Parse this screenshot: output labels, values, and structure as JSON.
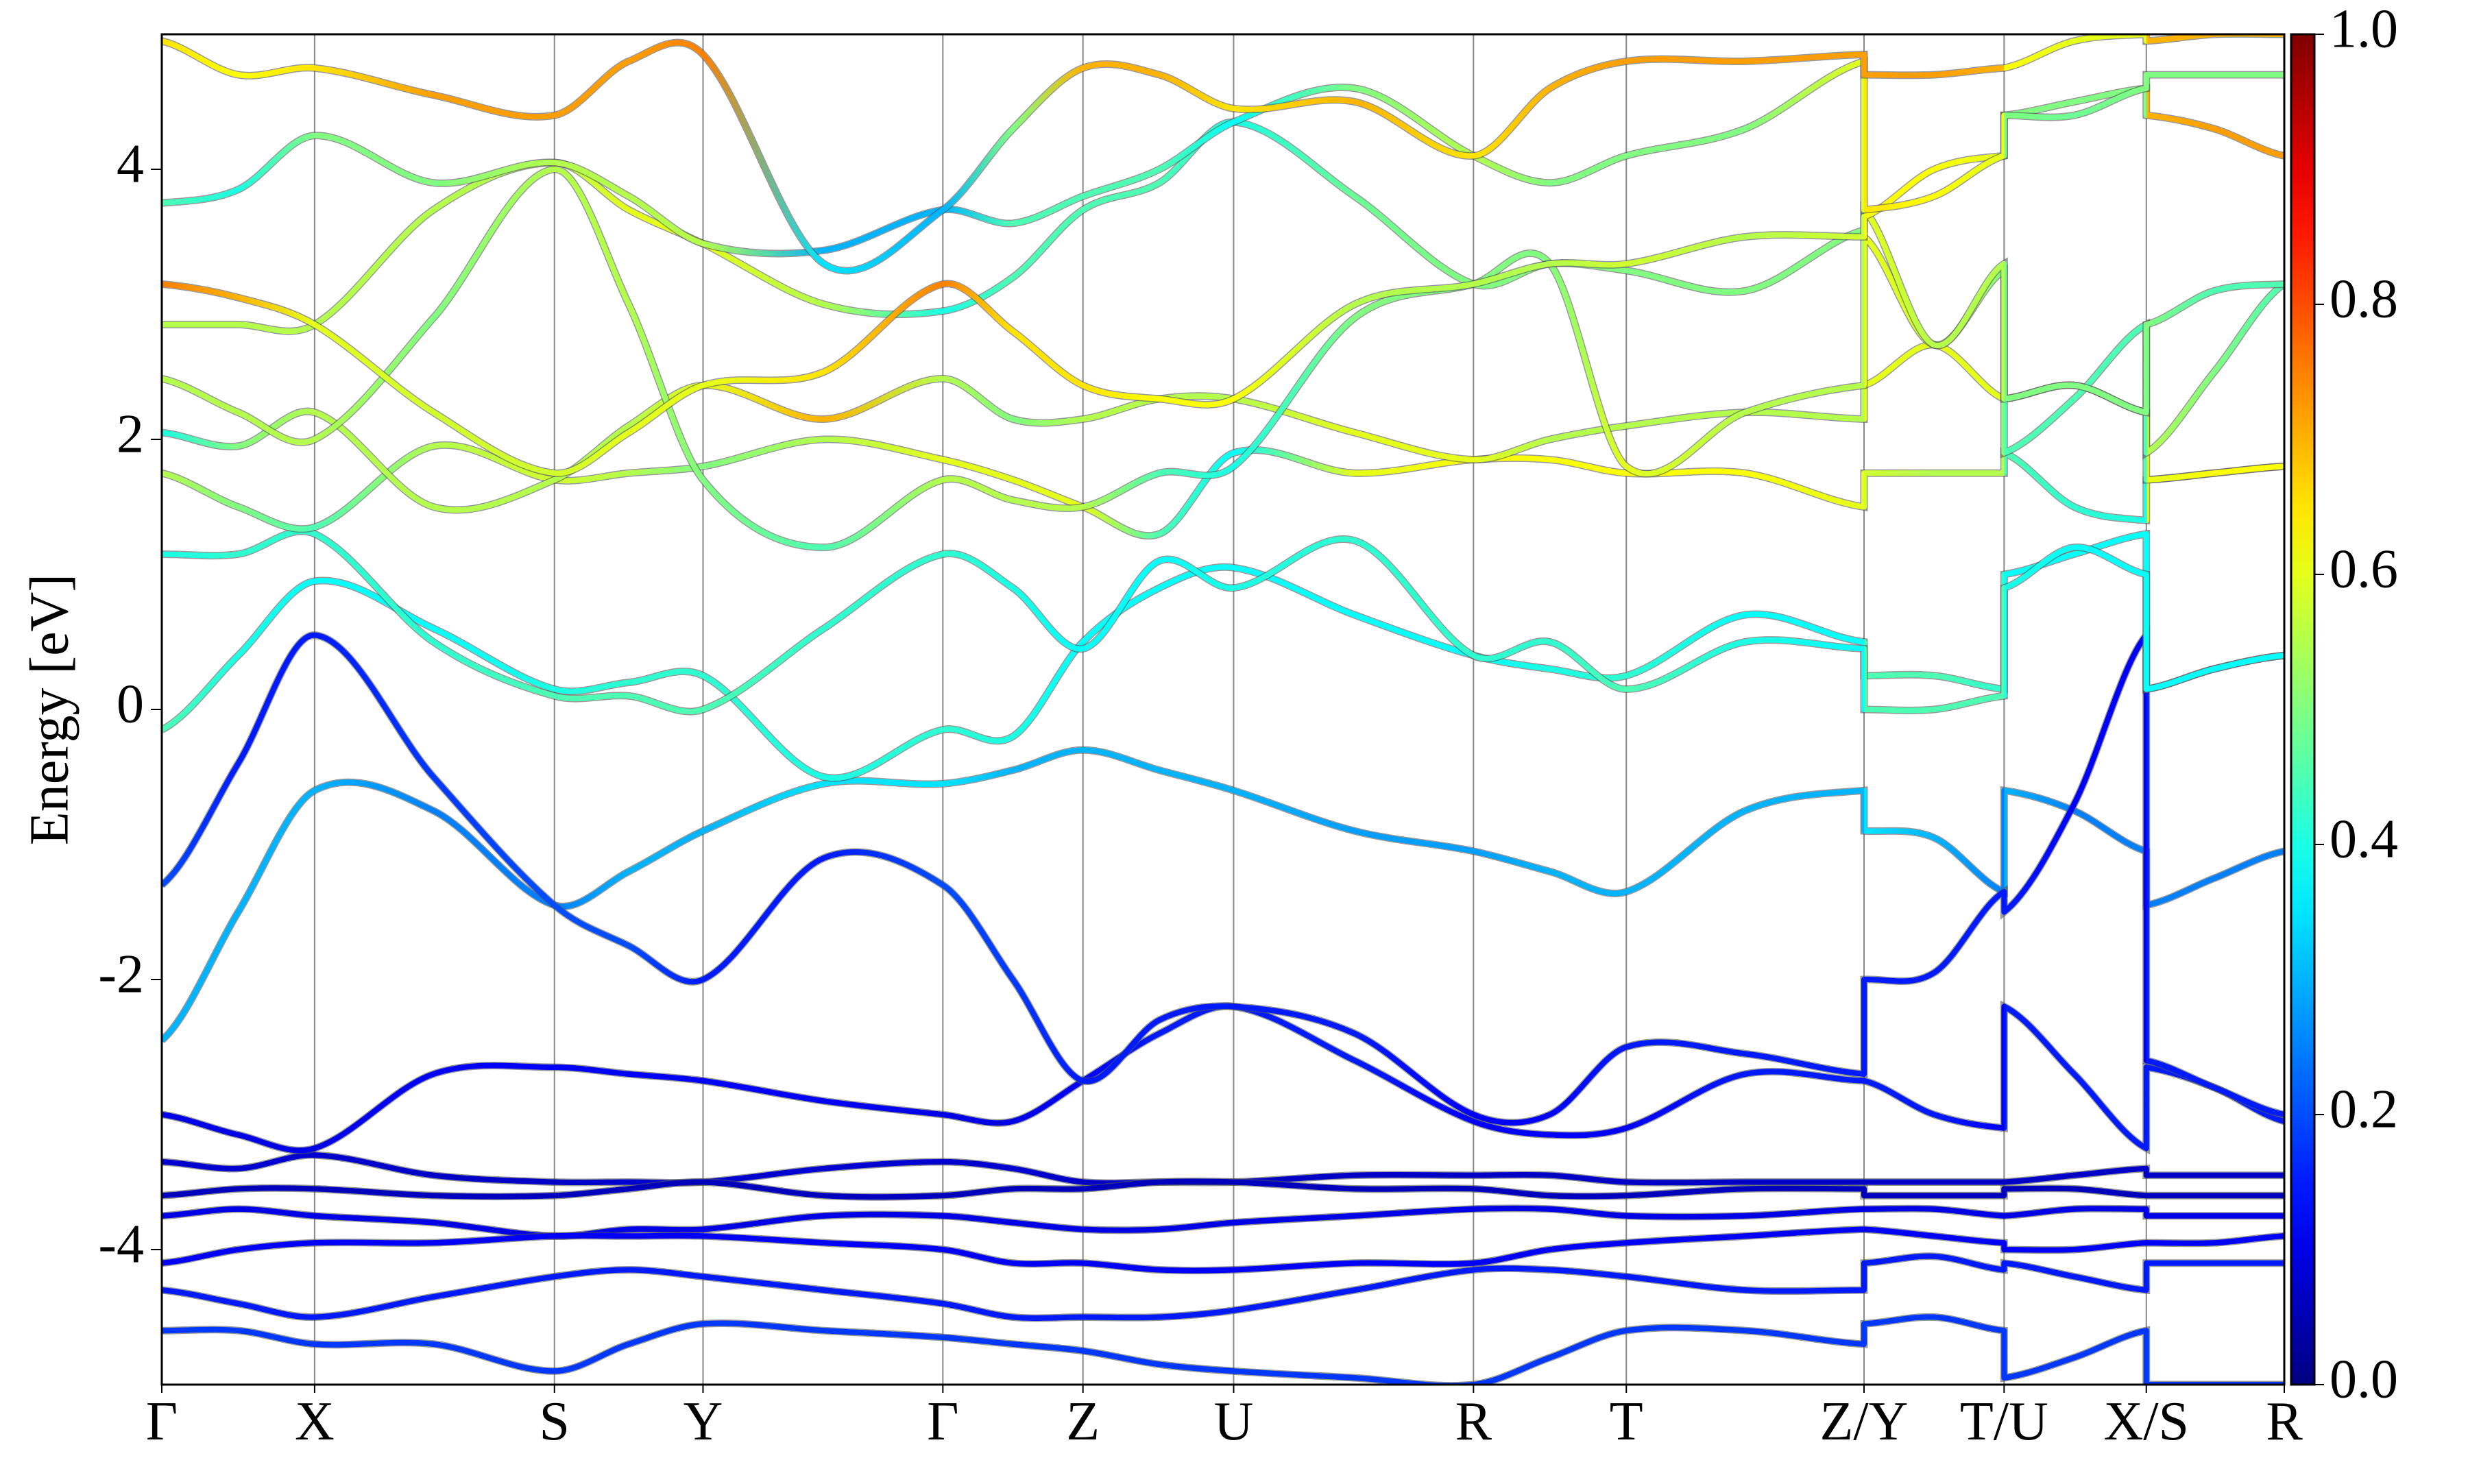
{
  "chart_data": {
    "type": "band",
    "ylabel": "Energy [eV]",
    "ylim": [
      -5,
      5
    ],
    "yticks": [
      -4,
      -2,
      0,
      2,
      4
    ],
    "xlim": [
      0,
      1
    ],
    "xticks": [
      {
        "value": 0,
        "label": "Γ"
      },
      {
        "value": 0.072,
        "label": "X"
      },
      {
        "value": 0.185,
        "label": "S"
      },
      {
        "value": 0.255,
        "label": "Y"
      },
      {
        "value": 0.368,
        "label": "Γ"
      },
      {
        "value": 0.434,
        "label": "Z"
      },
      {
        "value": 0.505,
        "label": "U"
      },
      {
        "value": 0.618,
        "label": "R"
      },
      {
        "value": 0.69,
        "label": "T"
      },
      {
        "value": 0.802,
        "label": "Z/Y"
      },
      {
        "value": 0.868,
        "label": "T/U"
      },
      {
        "value": 0.935,
        "label": "X/S"
      },
      {
        "value": 1,
        "label": "R"
      }
    ],
    "grid": true,
    "colormap": "jet",
    "clim": [
      0,
      1
    ],
    "cticks": [
      {
        "value": 0,
        "label": "0.0"
      },
      0.2,
      0.4,
      0.6,
      0.8,
      {
        "value": 1,
        "label": "1.0"
      }
    ],
    "x": [
      0,
      0.036,
      0.072,
      0.128,
      0.185,
      0.22,
      0.255,
      0.312,
      0.368,
      0.401,
      0.434,
      0.47,
      0.505,
      0.562,
      0.618,
      0.654,
      0.69,
      0.746,
      0.802,
      0.802,
      0.835,
      0.868,
      0.868,
      0.901,
      0.935,
      0.935,
      0.967,
      1
    ],
    "series": [
      {
        "values": [
          -3.35,
          -3.4,
          -3.3,
          -3.45,
          -3.5,
          -3.5,
          -3.5,
          -3.4,
          -3.35,
          -3.4,
          -3.5,
          -3.5,
          -3.5,
          -3.45,
          -3.45,
          -3.45,
          -3.5,
          -3.5,
          -3.5,
          -3.5,
          -3.5,
          -3.5,
          -3.5,
          -3.45,
          -3.4,
          -3.45,
          -3.45,
          -3.45
        ],
        "weights": [
          0.08,
          0.08,
          0.08,
          0.07,
          0.07,
          0.08,
          0.08,
          0.08,
          0.08,
          0.08,
          0.07,
          0.07,
          0.07,
          0.07,
          0.07,
          0.07,
          0.07,
          0.07,
          0.07,
          0.07,
          0.07,
          0.07,
          0.07,
          0.07,
          0.07,
          0.07,
          0.07,
          0.07
        ]
      },
      {
        "values": [
          -3.6,
          -3.55,
          -3.55,
          -3.6,
          -3.6,
          -3.55,
          -3.5,
          -3.6,
          -3.6,
          -3.55,
          -3.55,
          -3.5,
          -3.5,
          -3.55,
          -3.55,
          -3.6,
          -3.6,
          -3.55,
          -3.55,
          -3.6,
          -3.6,
          -3.6,
          -3.55,
          -3.55,
          -3.6,
          -3.6,
          -3.6,
          -3.6
        ],
        "weights": [
          0.06,
          0.06,
          0.06,
          0.06,
          0.06,
          0.06,
          0.06,
          0.06,
          0.06,
          0.06,
          0.06,
          0.06,
          0.06,
          0.06,
          0.06,
          0.06,
          0.06,
          0.06,
          0.06,
          0.06,
          0.06,
          0.06,
          0.06,
          0.06,
          0.06,
          0.06,
          0.06,
          0.06
        ]
      },
      {
        "values": [
          -3.75,
          -3.7,
          -3.75,
          -3.8,
          -3.9,
          -3.85,
          -3.85,
          -3.75,
          -3.75,
          -3.8,
          -3.85,
          -3.85,
          -3.8,
          -3.75,
          -3.7,
          -3.7,
          -3.75,
          -3.75,
          -3.7,
          -3.7,
          -3.7,
          -3.75,
          -3.75,
          -3.7,
          -3.7,
          -3.75,
          -3.75,
          -3.75
        ],
        "weights": [
          0.1,
          0.1,
          0.1,
          0.1,
          0.1,
          0.1,
          0.1,
          0.1,
          0.1,
          0.1,
          0.1,
          0.1,
          0.1,
          0.1,
          0.1,
          0.1,
          0.1,
          0.1,
          0.1,
          0.1,
          0.1,
          0.1,
          0.1,
          0.1,
          0.1,
          0.1,
          0.1,
          0.1
        ]
      },
      {
        "values": [
          -4.1,
          -4.0,
          -3.95,
          -3.95,
          -3.9,
          -3.9,
          -3.9,
          -3.95,
          -4.0,
          -4.1,
          -4.1,
          -4.15,
          -4.15,
          -4.1,
          -4.1,
          -4.0,
          -3.95,
          -3.9,
          -3.85,
          -3.85,
          -3.9,
          -3.95,
          -4.0,
          -4.0,
          -3.95,
          -3.95,
          -3.95,
          -3.9
        ],
        "weights": [
          0.12,
          0.12,
          0.12,
          0.12,
          0.12,
          0.12,
          0.12,
          0.12,
          0.12,
          0.12,
          0.12,
          0.12,
          0.12,
          0.12,
          0.12,
          0.12,
          0.12,
          0.12,
          0.12,
          0.12,
          0.12,
          0.12,
          0.12,
          0.12,
          0.12,
          0.12,
          0.12,
          0.12
        ]
      },
      {
        "values": [
          -4.3,
          -4.4,
          -4.5,
          -4.35,
          -4.2,
          -4.15,
          -4.2,
          -4.3,
          -4.4,
          -4.5,
          -4.5,
          -4.5,
          -4.45,
          -4.3,
          -4.15,
          -4.15,
          -4.2,
          -4.3,
          -4.3,
          -4.1,
          -4.05,
          -4.15,
          -4.1,
          -4.2,
          -4.3,
          -4.1,
          -4.1,
          -4.1
        ],
        "weights": [
          0.15,
          0.15,
          0.15,
          0.15,
          0.15,
          0.15,
          0.15,
          0.15,
          0.15,
          0.15,
          0.15,
          0.15,
          0.15,
          0.15,
          0.15,
          0.15,
          0.15,
          0.15,
          0.15,
          0.15,
          0.15,
          0.15,
          0.15,
          0.15,
          0.15,
          0.15,
          0.15,
          0.15
        ]
      },
      {
        "values": [
          -4.6,
          -4.6,
          -4.7,
          -4.7,
          -4.9,
          -4.7,
          -4.55,
          -4.6,
          -4.65,
          -4.7,
          -4.75,
          -4.85,
          -4.9,
          -4.95,
          -5.0,
          -4.8,
          -4.6,
          -4.6,
          -4.7,
          -4.55,
          -4.5,
          -4.6,
          -4.95,
          -4.8,
          -4.6,
          -5.0,
          -5.0,
          -5.0
        ],
        "weights": [
          0.18,
          0.18,
          0.18,
          0.18,
          0.18,
          0.18,
          0.18,
          0.18,
          0.18,
          0.18,
          0.18,
          0.18,
          0.18,
          0.18,
          0.18,
          0.18,
          0.18,
          0.18,
          0.18,
          0.18,
          0.18,
          0.18,
          0.18,
          0.18,
          0.18,
          0.18,
          0.18,
          0.18
        ]
      },
      {
        "values": [
          -3.0,
          -3.15,
          -3.25,
          -2.7,
          -2.65,
          -2.7,
          -2.75,
          -2.9,
          -3.0,
          -3.05,
          -2.75,
          -2.4,
          -2.2,
          -2.6,
          -3.05,
          -3.15,
          -3.1,
          -2.7,
          -2.75,
          -2.75,
          -3.0,
          -3.1,
          -2.2,
          -2.7,
          -3.25,
          -2.65,
          -2.8,
          -3.05
        ],
        "weights": [
          0.1,
          0.1,
          0.1,
          0.12,
          0.12,
          0.12,
          0.12,
          0.12,
          0.1,
          0.1,
          0.12,
          0.15,
          0.15,
          0.15,
          0.12,
          0.12,
          0.12,
          0.15,
          0.15,
          0.15,
          0.15,
          0.12,
          0.15,
          0.15,
          0.15,
          0.15,
          0.15,
          0.15
        ]
      },
      {
        "values": [
          -2.45,
          -1.5,
          -0.6,
          -0.75,
          -1.45,
          -1.2,
          -0.9,
          -0.55,
          -0.55,
          -0.45,
          -0.3,
          -0.45,
          -0.6,
          -0.9,
          -1.05,
          -1.2,
          -1.35,
          -0.75,
          -0.6,
          -0.9,
          -0.95,
          -1.35,
          -0.6,
          -0.75,
          -1.05,
          -1.45,
          -1.25,
          -1.05
        ],
        "weights": [
          0.3,
          0.3,
          0.3,
          0.25,
          0.25,
          0.3,
          0.3,
          0.35,
          0.35,
          0.3,
          0.3,
          0.3,
          0.3,
          0.28,
          0.28,
          0.3,
          0.3,
          0.3,
          0.3,
          0.35,
          0.3,
          0.25,
          0.3,
          0.25,
          0.25,
          0.25,
          0.25,
          0.25
        ]
      },
      {
        "values": [
          -1.3,
          -0.4,
          0.55,
          -0.5,
          -1.45,
          -1.75,
          -2.0,
          -1.1,
          -1.3,
          -2.0,
          -2.75,
          -2.3,
          -2.2,
          -2.4,
          -3.0,
          -3.0,
          -2.5,
          -2.55,
          -2.7,
          -2.0,
          -1.95,
          -1.35,
          -1.5,
          -0.7,
          0.55,
          -2.6,
          -2.8,
          -3.0
        ],
        "weights": [
          0.2,
          0.15,
          0.15,
          0.18,
          0.2,
          0.2,
          0.15,
          0.15,
          0.2,
          0.18,
          0.15,
          0.15,
          0.15,
          0.15,
          0.12,
          0.12,
          0.15,
          0.15,
          0.15,
          0.15,
          0.15,
          0.15,
          0.15,
          0.12,
          0.12,
          0.15,
          0.15,
          0.15
        ]
      },
      {
        "values": [
          -0.15,
          0.4,
          0.95,
          0.6,
          0.15,
          0.2,
          0.25,
          -0.5,
          -0.15,
          -0.2,
          0.5,
          0.9,
          1.05,
          0.7,
          0.4,
          0.3,
          0.25,
          0.7,
          0.5,
          0.25,
          0.25,
          0.15,
          1.0,
          1.15,
          1.3,
          0.15,
          0.3,
          0.4
        ],
        "weights": [
          0.45,
          0.4,
          0.38,
          0.38,
          0.4,
          0.42,
          0.42,
          0.4,
          0.42,
          0.4,
          0.38,
          0.38,
          0.38,
          0.38,
          0.38,
          0.4,
          0.42,
          0.38,
          0.38,
          0.45,
          0.45,
          0.42,
          0.38,
          0.38,
          0.38,
          0.38,
          0.38,
          0.38
        ]
      },
      {
        "values": [
          1.15,
          1.15,
          1.3,
          0.5,
          0.1,
          0.1,
          0.0,
          0.6,
          1.15,
          0.9,
          0.45,
          1.1,
          0.9,
          1.25,
          0.4,
          0.5,
          0.15,
          0.5,
          0.45,
          0.0,
          0.0,
          0.1,
          0.9,
          1.2,
          1.0,
          0.15,
          0.3,
          0.4
        ],
        "weights": [
          0.4,
          0.42,
          0.42,
          0.42,
          0.45,
          0.45,
          0.45,
          0.42,
          0.42,
          0.4,
          0.38,
          0.38,
          0.4,
          0.42,
          0.42,
          0.42,
          0.45,
          0.4,
          0.38,
          0.45,
          0.45,
          0.45,
          0.4,
          0.38,
          0.38,
          0.38,
          0.38,
          0.38
        ]
      },
      {
        "values": [
          1.75,
          1.5,
          1.35,
          1.95,
          1.7,
          1.75,
          1.8,
          2.0,
          1.85,
          1.7,
          1.5,
          1.3,
          1.9,
          1.75,
          1.85,
          1.85,
          1.75,
          1.75,
          1.5,
          1.75,
          1.75,
          1.75,
          1.9,
          1.5,
          1.4,
          1.7,
          1.75,
          1.8
        ],
        "weights": [
          0.55,
          0.5,
          0.45,
          0.55,
          0.58,
          0.55,
          0.5,
          0.55,
          0.6,
          0.6,
          0.6,
          0.45,
          0.38,
          0.6,
          0.62,
          0.62,
          0.62,
          0.62,
          0.6,
          0.58,
          0.55,
          0.55,
          0.45,
          0.42,
          0.4,
          0.6,
          0.62,
          0.62
        ]
      },
      {
        "values": [
          2.05,
          1.95,
          2.2,
          1.5,
          1.7,
          2.1,
          2.4,
          2.15,
          2.45,
          2.15,
          2.15,
          2.3,
          2.3,
          2.05,
          1.85,
          2.0,
          2.1,
          2.2,
          2.15,
          2.4,
          2.7,
          2.3,
          2.3,
          2.4,
          2.2,
          1.7,
          1.75,
          1.8
        ],
        "weights": [
          0.4,
          0.5,
          0.55,
          0.55,
          0.55,
          0.55,
          0.6,
          0.7,
          0.55,
          0.5,
          0.55,
          0.55,
          0.55,
          0.6,
          0.6,
          0.55,
          0.55,
          0.55,
          0.55,
          0.6,
          0.6,
          0.6,
          0.5,
          0.45,
          0.45,
          0.6,
          0.62,
          0.62
        ]
      },
      {
        "values": [
          2.45,
          2.2,
          2.0,
          2.9,
          4.0,
          3.0,
          1.7,
          1.2,
          1.7,
          1.55,
          1.5,
          1.75,
          1.8,
          2.9,
          3.15,
          3.3,
          1.8,
          2.2,
          2.4,
          3.5,
          2.7,
          3.25,
          1.9,
          2.3,
          2.85,
          1.9,
          2.5,
          3.15
        ],
        "weights": [
          0.55,
          0.55,
          0.55,
          0.5,
          0.55,
          0.55,
          0.5,
          0.45,
          0.55,
          0.55,
          0.55,
          0.45,
          0.4,
          0.5,
          0.5,
          0.5,
          0.6,
          0.55,
          0.55,
          0.6,
          0.58,
          0.5,
          0.45,
          0.45,
          0.45,
          0.55,
          0.5,
          0.45
        ]
      },
      {
        "values": [
          2.85,
          2.85,
          2.85,
          3.7,
          4.05,
          3.7,
          3.45,
          3.0,
          2.95,
          3.2,
          3.7,
          3.9,
          4.35,
          3.8,
          3.15,
          3.3,
          3.25,
          3.1,
          3.55,
          3.7,
          2.7,
          3.3,
          2.3,
          2.4,
          2.2,
          2.85,
          3.1,
          3.15
        ],
        "weights": [
          0.55,
          0.55,
          0.55,
          0.55,
          0.55,
          0.6,
          0.6,
          0.55,
          0.4,
          0.45,
          0.45,
          0.45,
          0.4,
          0.48,
          0.5,
          0.5,
          0.5,
          0.5,
          0.5,
          0.6,
          0.55,
          0.55,
          0.5,
          0.5,
          0.5,
          0.5,
          0.45,
          0.45
        ]
      },
      {
        "values": [
          3.15,
          3.05,
          2.85,
          2.2,
          1.75,
          2.05,
          2.4,
          2.5,
          3.15,
          2.8,
          2.4,
          2.3,
          2.3,
          3.0,
          3.15,
          3.3,
          3.3,
          3.5,
          3.5,
          3.65,
          4.0,
          4.1,
          4.4,
          4.5,
          4.6,
          4.4,
          4.3,
          4.1
        ],
        "weights": [
          0.75,
          0.7,
          0.6,
          0.58,
          0.58,
          0.6,
          0.6,
          0.65,
          0.75,
          0.65,
          0.65,
          0.62,
          0.62,
          0.55,
          0.55,
          0.55,
          0.58,
          0.55,
          0.58,
          0.62,
          0.62,
          0.6,
          0.5,
          0.5,
          0.5,
          0.7,
          0.72,
          0.72
        ]
      },
      {
        "values": [
          3.75,
          3.85,
          4.25,
          3.9,
          4.05,
          3.8,
          3.45,
          3.4,
          3.7,
          3.6,
          3.8,
          4.0,
          4.35,
          4.6,
          4.1,
          3.9,
          4.1,
          4.3,
          4.8,
          3.7,
          3.8,
          4.1,
          4.4,
          4.4,
          4.6,
          4.7,
          4.7,
          4.7
        ],
        "weights": [
          0.45,
          0.4,
          0.5,
          0.5,
          0.55,
          0.55,
          0.55,
          0.3,
          0.3,
          0.45,
          0.45,
          0.45,
          0.38,
          0.5,
          0.55,
          0.5,
          0.5,
          0.5,
          0.6,
          0.65,
          0.62,
          0.6,
          0.5,
          0.48,
          0.5,
          0.5,
          0.5,
          0.5
        ]
      },
      {
        "values": [
          4.95,
          4.7,
          4.75,
          4.55,
          4.4,
          4.8,
          4.85,
          3.3,
          3.7,
          4.3,
          4.75,
          4.7,
          4.45,
          4.5,
          4.1,
          4.6,
          4.8,
          4.8,
          4.85,
          4.7,
          4.7,
          4.75,
          4.75,
          4.95,
          5.0,
          4.95,
          5.0,
          5.0
        ],
        "weights": [
          0.65,
          0.62,
          0.65,
          0.72,
          0.72,
          0.72,
          0.75,
          0.35,
          0.3,
          0.5,
          0.7,
          0.7,
          0.65,
          0.7,
          0.65,
          0.7,
          0.72,
          0.72,
          0.72,
          0.72,
          0.72,
          0.7,
          0.62,
          0.6,
          0.6,
          0.7,
          0.7,
          0.7
        ]
      }
    ]
  }
}
